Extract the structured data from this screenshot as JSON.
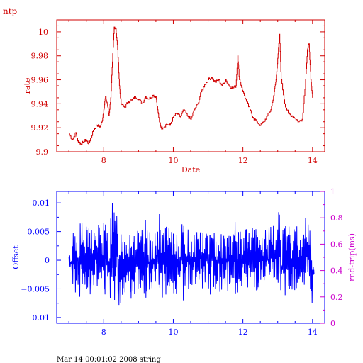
{
  "header_label": "ntp",
  "footer_text": "Mar 14 00:01:02 2008 string",
  "colors": {
    "rate": "#d00000",
    "offset": "#0000ff",
    "rtt_axis": "#cc00cc"
  },
  "chart_data": [
    {
      "type": "line",
      "xlabel": "Date",
      "ylabel": "rate",
      "xlim": [
        6.65,
        14.35
      ],
      "ylim": [
        9.9,
        10.01
      ],
      "x_ticks": [
        8,
        10,
        12,
        14
      ],
      "y_ticks": [
        9.9,
        9.92,
        9.94,
        9.96,
        9.98,
        10
      ],
      "y_tick_labels": [
        "9.9",
        "9.92",
        "9.94",
        "9.96",
        "9.98",
        "10"
      ],
      "grid": false,
      "series": [
        {
          "style": "step",
          "x": [
            7.0,
            7.1,
            7.2,
            7.25,
            7.3,
            7.35,
            7.4,
            7.5,
            7.55,
            7.6,
            7.7,
            7.8,
            7.9,
            7.95,
            8.0,
            8.05,
            8.1,
            8.15,
            8.2,
            8.25,
            8.3,
            8.35,
            8.4,
            8.45,
            8.5,
            8.6,
            8.7,
            8.8,
            8.9,
            9.0,
            9.1,
            9.2,
            9.3,
            9.4,
            9.5,
            9.55,
            9.6,
            9.65,
            9.7,
            9.8,
            9.9,
            10.0,
            10.1,
            10.2,
            10.3,
            10.4,
            10.5,
            10.6,
            10.7,
            10.8,
            10.9,
            11.0,
            11.1,
            11.2,
            11.3,
            11.4,
            11.5,
            11.6,
            11.7,
            11.8,
            11.85,
            11.9,
            12.0,
            12.1,
            12.2,
            12.3,
            12.4,
            12.5,
            12.6,
            12.7,
            12.8,
            12.9,
            12.95,
            13.0,
            13.05,
            13.1,
            13.2,
            13.3,
            13.4,
            13.5,
            13.6,
            13.7,
            13.8,
            13.85,
            13.9,
            13.95,
            14.0
          ],
          "y": [
            9.915,
            9.91,
            9.916,
            9.909,
            9.908,
            9.906,
            9.908,
            9.91,
            9.907,
            9.909,
            9.918,
            9.922,
            9.921,
            9.925,
            9.935,
            9.946,
            9.94,
            9.93,
            9.945,
            9.975,
            10.004,
            10.003,
            9.985,
            9.955,
            9.94,
            9.937,
            9.942,
            9.943,
            9.946,
            9.944,
            9.94,
            9.946,
            9.944,
            9.947,
            9.946,
            9.935,
            9.925,
            9.92,
            9.92,
            9.923,
            9.922,
            9.929,
            9.932,
            9.929,
            9.935,
            9.93,
            9.927,
            9.935,
            9.94,
            9.95,
            9.956,
            9.96,
            9.962,
            9.958,
            9.96,
            9.955,
            9.96,
            9.955,
            9.953,
            9.955,
            9.98,
            9.96,
            9.95,
            9.942,
            9.935,
            9.928,
            9.925,
            9.922,
            9.925,
            9.93,
            9.935,
            9.95,
            9.96,
            9.978,
            9.998,
            9.96,
            9.94,
            9.932,
            9.93,
            9.928,
            9.925,
            9.927,
            9.96,
            9.985,
            9.99,
            9.96,
            9.945
          ]
        }
      ]
    },
    {
      "type": "line",
      "xlabel": "",
      "ylabel": "Offset",
      "y2label": "rnd-trip(ms)",
      "xlim": [
        6.65,
        14.35
      ],
      "ylim": [
        -0.011,
        0.012
      ],
      "y2lim": [
        0,
        1
      ],
      "x_ticks": [
        8,
        10,
        12,
        14
      ],
      "y_ticks": [
        -0.01,
        -0.005,
        0,
        0.005,
        0.01
      ],
      "y_tick_labels": [
        "−0.01",
        "−0.005",
        "0",
        "0.005",
        "0.01"
      ],
      "y2_ticks": [
        0,
        0.2,
        0.4,
        0.6,
        0.8,
        1
      ],
      "y2_tick_labels": [
        "0",
        "0.2",
        "0.4",
        "0.6",
        "0.8",
        "1"
      ],
      "grid": false,
      "series": [
        {
          "style": "spiky",
          "x": [
            7.0,
            7.1,
            7.2,
            7.3,
            7.4,
            7.5,
            7.6,
            7.7,
            7.8,
            7.9,
            8.0,
            8.1,
            8.2,
            8.3,
            8.4,
            8.5,
            8.6,
            8.7,
            8.8,
            8.9,
            9.0,
            9.1,
            9.2,
            9.3,
            9.4,
            9.5,
            9.6,
            9.7,
            9.8,
            9.9,
            10.0,
            10.1,
            10.2,
            10.3,
            10.4,
            10.5,
            10.6,
            10.7,
            10.8,
            10.9,
            11.0,
            11.1,
            11.2,
            11.3,
            11.4,
            11.5,
            11.6,
            11.7,
            11.8,
            11.9,
            12.0,
            12.1,
            12.2,
            12.3,
            12.4,
            12.5,
            12.6,
            12.7,
            12.8,
            12.9,
            13.0,
            13.1,
            13.2,
            13.3,
            13.4,
            13.5,
            13.6,
            13.7,
            13.8,
            13.9,
            14.0
          ],
          "y_min": [
            -0.002,
            -0.006,
            -0.005,
            -0.007,
            -0.006,
            -0.005,
            -0.006,
            -0.005,
            -0.007,
            -0.006,
            -0.006,
            -0.007,
            -0.006,
            -0.007,
            -0.008,
            -0.007,
            -0.006,
            -0.007,
            -0.006,
            -0.006,
            -0.005,
            -0.006,
            -0.007,
            -0.006,
            -0.006,
            -0.005,
            -0.007,
            -0.006,
            -0.006,
            -0.005,
            -0.006,
            -0.006,
            -0.007,
            -0.006,
            -0.006,
            -0.005,
            -0.006,
            -0.006,
            -0.005,
            -0.006,
            -0.006,
            -0.005,
            -0.006,
            -0.006,
            -0.005,
            -0.006,
            -0.005,
            -0.006,
            -0.006,
            -0.005,
            -0.006,
            -0.005,
            -0.006,
            -0.006,
            -0.006,
            -0.005,
            -0.006,
            -0.006,
            -0.005,
            -0.006,
            -0.006,
            -0.008,
            -0.007,
            -0.006,
            -0.006,
            -0.007,
            -0.005,
            -0.006,
            -0.006,
            -0.009,
            -0.003
          ],
          "y_max": [
            0.001,
            0.006,
            0.005,
            0.007,
            0.006,
            0.006,
            0.007,
            0.006,
            0.007,
            0.006,
            0.007,
            0.006,
            0.01,
            0.009,
            0.007,
            0.006,
            0.006,
            0.007,
            0.006,
            0.006,
            0.005,
            0.006,
            0.007,
            0.005,
            0.006,
            0.005,
            0.009,
            0.006,
            0.006,
            0.005,
            0.006,
            0.006,
            0.007,
            0.006,
            0.006,
            0.005,
            0.006,
            0.007,
            0.005,
            0.006,
            0.006,
            0.005,
            0.006,
            0.006,
            0.005,
            0.006,
            0.006,
            0.007,
            0.006,
            0.005,
            0.006,
            0.006,
            0.006,
            0.006,
            0.006,
            0.005,
            0.006,
            0.006,
            0.006,
            0.007,
            0.011,
            0.006,
            0.006,
            0.006,
            0.006,
            0.007,
            0.006,
            0.006,
            0.008,
            0.007,
            -0.001
          ]
        }
      ]
    }
  ]
}
